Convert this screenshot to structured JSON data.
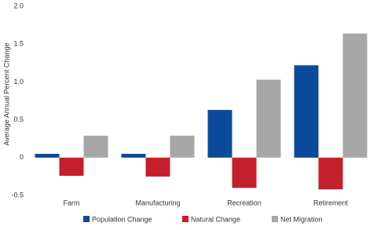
{
  "chart_data": {
    "type": "bar",
    "y_label": "Average Annual Percent Change",
    "categories": [
      "Farm",
      "Manufacturing",
      "Recreation",
      "Retirement"
    ],
    "series": [
      {
        "name": "Population Change",
        "color": "#0b4a9b",
        "values": [
          0.05,
          0.05,
          0.63,
          1.22
        ]
      },
      {
        "name": "Natural Change",
        "color": "#c51f2e",
        "values": [
          -0.24,
          -0.25,
          -0.4,
          -0.42
        ]
      },
      {
        "name": "Net Migration",
        "color": "#a7a7a7",
        "values": [
          0.29,
          0.29,
          1.03,
          1.64
        ]
      }
    ],
    "ylim": [
      -0.5,
      2
    ],
    "yticks": [
      {
        "value": 2,
        "label": "2.0"
      },
      1.5,
      {
        "value": 1,
        "label": "1.0"
      },
      0.5,
      0,
      -0.5
    ],
    "grid": false
  }
}
